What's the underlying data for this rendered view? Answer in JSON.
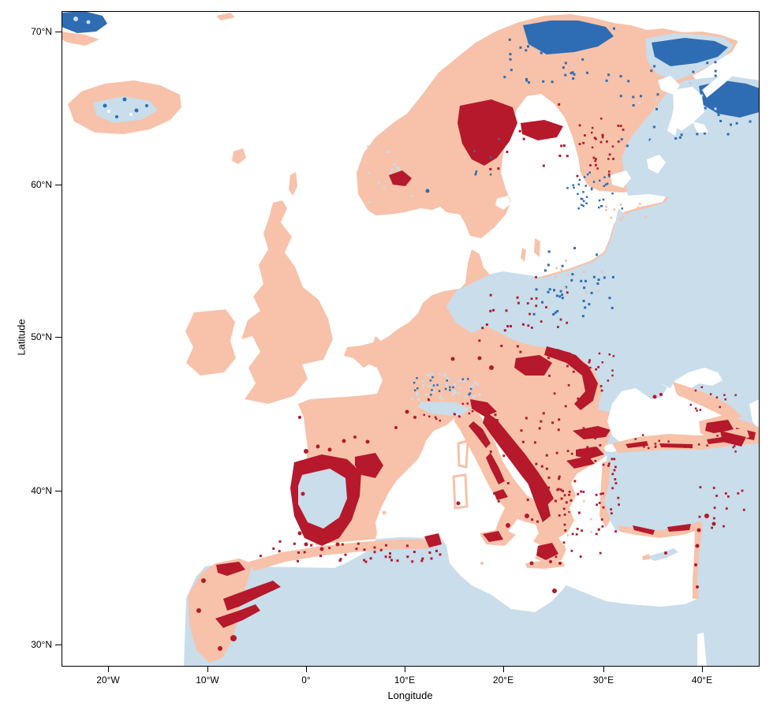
{
  "axes": {
    "x": {
      "label": "Longitude",
      "tick_labels": [
        "20°W",
        "10°W",
        "0°",
        "10°E",
        "20°E",
        "30°E",
        "40°E"
      ]
    },
    "y": {
      "label": "Latitude",
      "tick_labels": [
        "70°N",
        "60°N",
        "50°N",
        "40°N",
        "30°N"
      ]
    }
  },
  "palette": {
    "white": "#ffffff",
    "salmon": "#f7c2a9",
    "dark_red": "#b5192b",
    "light_blue": "#c9ddeb",
    "dark_blue": "#2e6db4",
    "frame": "#000000"
  }
}
